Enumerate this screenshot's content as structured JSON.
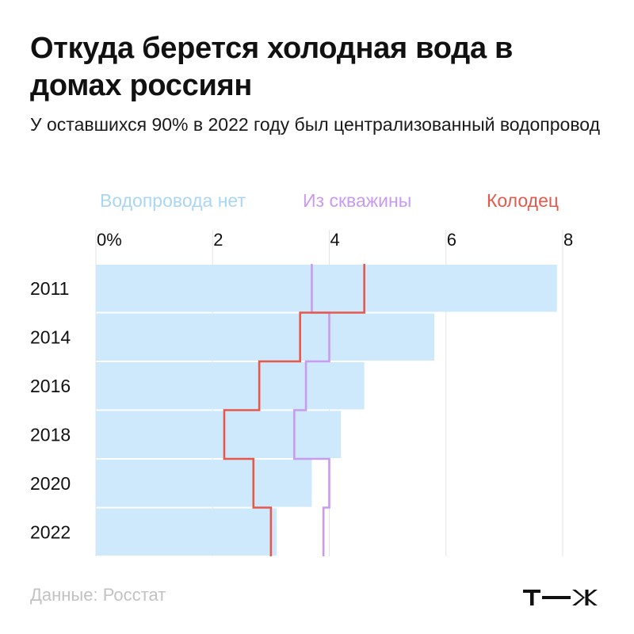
{
  "title": "Откуда берется холодная вода в домах россиян",
  "subtitle": "У оставшихся 90% в 2022 году был централизованный водопровод",
  "source": "Данные: Росстат",
  "logo_text": "т—ж",
  "colors": {
    "no_water": "#cde9fb",
    "well": "#e8584a",
    "borehole": "#c99af0",
    "legend_no_water": "#a9d6f5",
    "grid": "#e3e3e3",
    "source": "#c2c2c2"
  },
  "chart_data": {
    "type": "bar",
    "orientation": "horizontal",
    "categories": [
      "2011",
      "2014",
      "2016",
      "2018",
      "2020",
      "2022"
    ],
    "xlim": [
      0,
      8
    ],
    "xticks": [
      "0%",
      "2",
      "4",
      "6",
      "8"
    ],
    "grid": true,
    "legend_position": "top",
    "series": [
      {
        "name": "Водопровода нет",
        "style": "bar",
        "values": [
          7.9,
          5.8,
          4.6,
          4.2,
          3.7,
          3.1
        ]
      },
      {
        "name": "Из скважины",
        "style": "step",
        "values": [
          3.7,
          4.0,
          3.6,
          3.4,
          4.0,
          3.9
        ]
      },
      {
        "name": "Колодец",
        "style": "step",
        "values": [
          4.6,
          3.5,
          2.8,
          2.2,
          2.7,
          3.0
        ]
      }
    ]
  }
}
